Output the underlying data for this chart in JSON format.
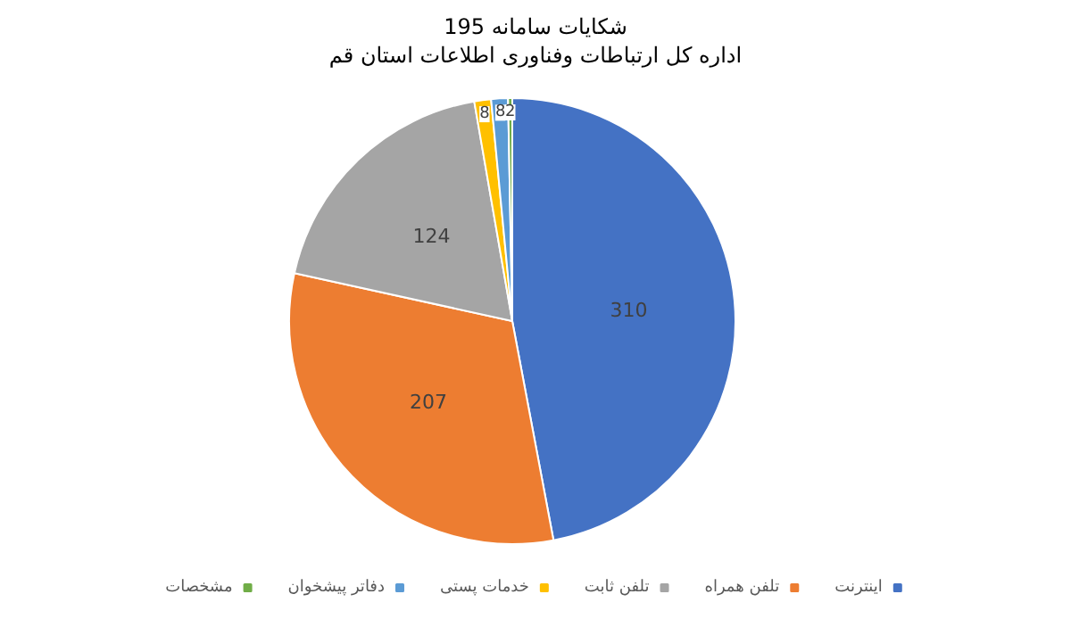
{
  "chart_data": {
    "type": "pie",
    "title": "شکایات سامانه 195",
    "subtitle": "اداره کل ارتباطات وفناوری اطلاعات استان قم",
    "categories": [
      "اینترنت",
      "تلفن همراه",
      "تلفن ثابت",
      "خدمات پستی",
      "دفاتر پیشخوان",
      "مشخصات"
    ],
    "values": [
      310,
      207,
      124,
      8,
      8,
      2
    ],
    "colors": [
      "#4472c4",
      "#ed7d31",
      "#a5a5a5",
      "#ffc000",
      "#5b9bd5",
      "#70ad47"
    ],
    "data_labels": true,
    "legend": "bottom"
  }
}
